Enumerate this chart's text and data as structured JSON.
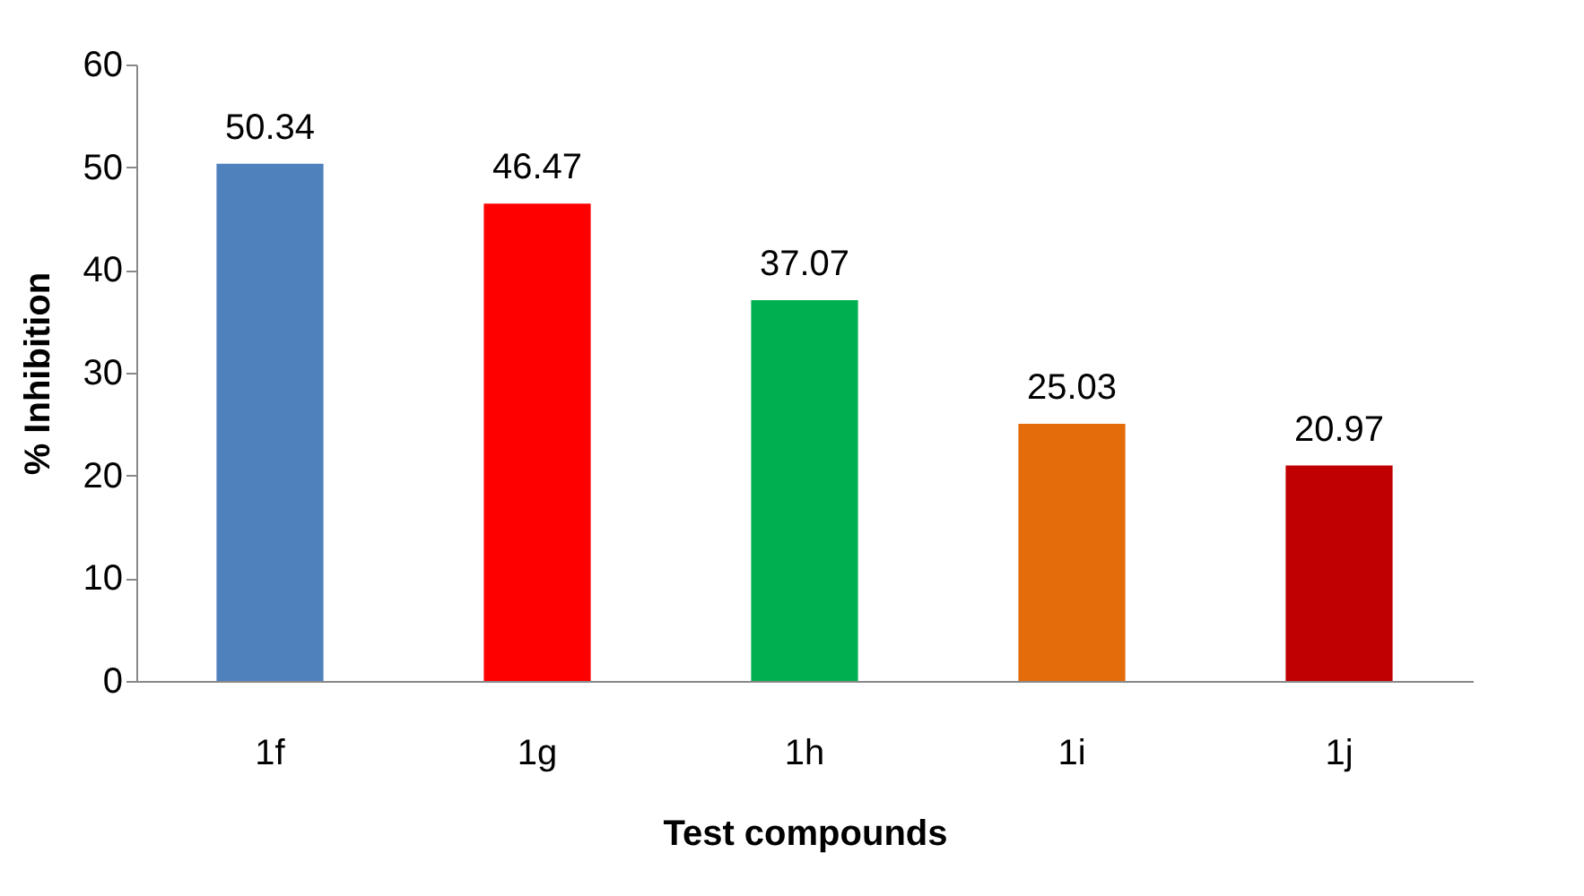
{
  "chart_data": {
    "type": "bar",
    "xlabel": "Test compounds",
    "ylabel": "% Inhibition",
    "categories": [
      "1f",
      "1g",
      "1h",
      "1i",
      "1j"
    ],
    "values": [
      50.34,
      46.47,
      37.07,
      25.03,
      20.97
    ],
    "colors": [
      "#4f81bd",
      "#ff0000",
      "#00b050",
      "#e46c0a",
      "#c00000"
    ],
    "ylim": [
      0,
      60
    ],
    "yticks": [
      0,
      10,
      20,
      30,
      40,
      50,
      60
    ],
    "data_labels": true,
    "grid": false
  }
}
